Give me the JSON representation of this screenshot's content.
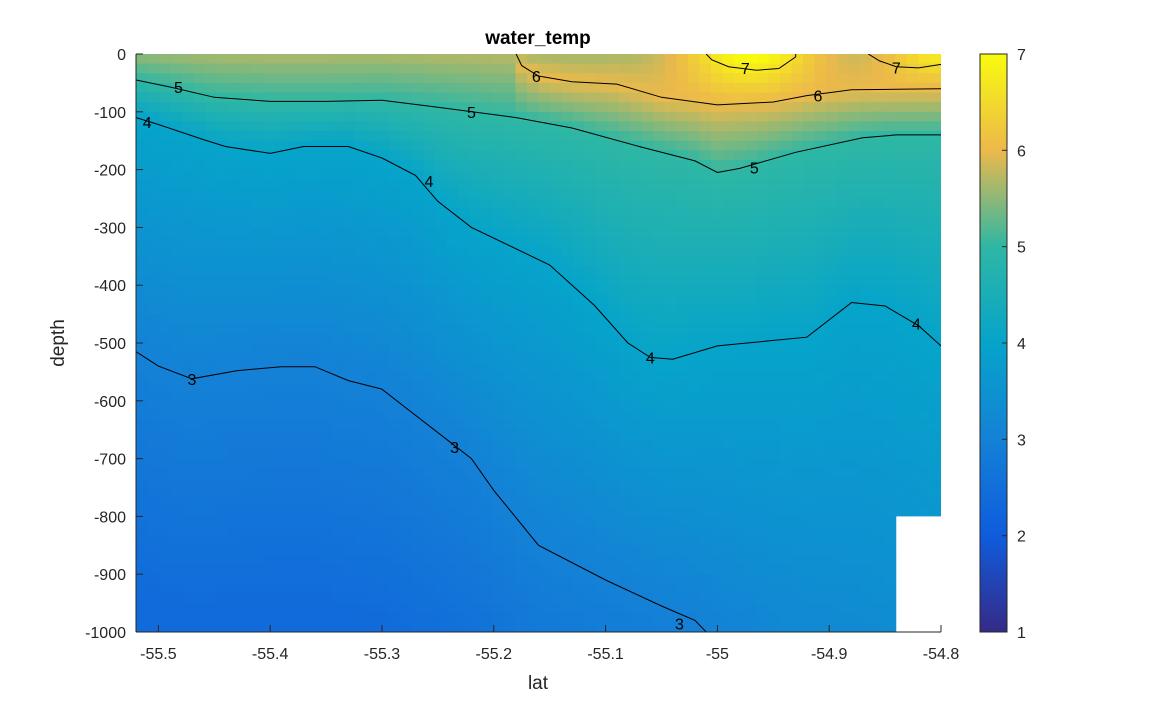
{
  "chart_data": {
    "type": "heatmap",
    "title": "water_temp",
    "xlabel": "lat",
    "ylabel": "depth",
    "xlim": [
      -55.52,
      -54.8
    ],
    "ylim": [
      -1000,
      0
    ],
    "x_ticks": [
      -55.5,
      -55.4,
      -55.3,
      -55.2,
      -55.1,
      -55,
      -54.9,
      -54.8
    ],
    "x_tick_labels": [
      "-55.5",
      "-55.4",
      "-55.3",
      "-55.2",
      "-55.1",
      "-55",
      "-54.9",
      "-54.8"
    ],
    "y_ticks": [
      0,
      -100,
      -200,
      -300,
      -400,
      -500,
      -600,
      -700,
      -800,
      -900,
      -1000
    ],
    "y_tick_labels": [
      "0",
      "-100",
      "-200",
      "-300",
      "-400",
      "-500",
      "-600",
      "-700",
      "-800",
      "-900",
      "-1000"
    ],
    "colorbar": {
      "limits": [
        1,
        7
      ],
      "ticks": [
        1,
        2,
        3,
        4,
        5,
        6,
        7
      ],
      "tick_labels": [
        "1",
        "2",
        "3",
        "4",
        "5",
        "6",
        "7"
      ],
      "colormap": "parula"
    },
    "grid": false,
    "missing_region": {
      "x_range": [
        -54.84,
        -54.8
      ],
      "y_range": [
        -1000,
        -800
      ]
    },
    "contours": [
      {
        "level": 3,
        "points": [
          [
            -55.52,
            -515
          ],
          [
            -55.5,
            -540
          ],
          [
            -55.47,
            -562
          ],
          [
            -55.43,
            -548
          ],
          [
            -55.39,
            -541
          ],
          [
            -55.36,
            -541
          ],
          [
            -55.33,
            -565
          ],
          [
            -55.3,
            -580
          ],
          [
            -55.28,
            -610
          ],
          [
            -55.24,
            -670
          ],
          [
            -55.22,
            -700
          ],
          [
            -55.2,
            -755
          ],
          [
            -55.16,
            -850
          ],
          [
            -55.1,
            -910
          ],
          [
            -55.05,
            -955
          ],
          [
            -55.02,
            -980
          ],
          [
            -55.01,
            -1000
          ]
        ],
        "labels": [
          {
            "x": -55.47,
            "y": -562,
            "text": "3"
          },
          {
            "x": -55.235,
            "y": -680,
            "text": "3"
          },
          {
            "x": -55.034,
            "y": -985,
            "text": "3"
          }
        ]
      },
      {
        "level": 4,
        "points": [
          [
            -55.52,
            -110
          ],
          [
            -55.5,
            -122
          ],
          [
            -55.46,
            -148
          ],
          [
            -55.44,
            -160
          ],
          [
            -55.4,
            -172
          ],
          [
            -55.37,
            -160
          ],
          [
            -55.33,
            -160
          ],
          [
            -55.3,
            -180
          ],
          [
            -55.27,
            -210
          ],
          [
            -55.25,
            -255
          ],
          [
            -55.22,
            -300
          ],
          [
            -55.15,
            -365
          ],
          [
            -55.11,
            -435
          ],
          [
            -55.08,
            -500
          ],
          [
            -55.06,
            -525
          ],
          [
            -55.04,
            -528
          ],
          [
            -55.0,
            -505
          ],
          [
            -54.92,
            -490
          ],
          [
            -54.88,
            -430
          ],
          [
            -54.85,
            -436
          ],
          [
            -54.82,
            -470
          ],
          [
            -54.8,
            -505
          ]
        ],
        "labels": [
          {
            "x": -55.51,
            "y": -118,
            "text": "4"
          },
          {
            "x": -55.258,
            "y": -220,
            "text": "4"
          },
          {
            "x": -55.06,
            "y": -525,
            "text": "4"
          },
          {
            "x": -54.822,
            "y": -466,
            "text": "4"
          }
        ]
      },
      {
        "level": 5,
        "points": [
          [
            -55.52,
            -45
          ],
          [
            -55.49,
            -57
          ],
          [
            -55.45,
            -75
          ],
          [
            -55.4,
            -82
          ],
          [
            -55.35,
            -82
          ],
          [
            -55.3,
            -80
          ],
          [
            -55.25,
            -92
          ],
          [
            -55.18,
            -110
          ],
          [
            -55.13,
            -128
          ],
          [
            -55.07,
            -160
          ],
          [
            -55.02,
            -185
          ],
          [
            -55.0,
            -205
          ],
          [
            -54.98,
            -198
          ],
          [
            -54.93,
            -170
          ],
          [
            -54.87,
            -145
          ],
          [
            -54.84,
            -140
          ],
          [
            -54.8,
            -140
          ]
        ],
        "labels": [
          {
            "x": -55.482,
            "y": -57,
            "text": "5"
          },
          {
            "x": -55.22,
            "y": -100,
            "text": "5"
          },
          {
            "x": -54.967,
            "y": -196,
            "text": "5"
          }
        ]
      },
      {
        "level": 6,
        "points": [
          [
            -55.18,
            0
          ],
          [
            -55.175,
            -20
          ],
          [
            -55.16,
            -38
          ],
          [
            -55.13,
            -48
          ],
          [
            -55.09,
            -52
          ],
          [
            -55.05,
            -75
          ],
          [
            -55.0,
            -88
          ],
          [
            -54.95,
            -83
          ],
          [
            -54.92,
            -72
          ],
          [
            -54.88,
            -62
          ],
          [
            -54.84,
            -61
          ],
          [
            -54.8,
            -60
          ]
        ],
        "labels": [
          {
            "x": -55.162,
            "y": -38,
            "text": "6"
          },
          {
            "x": -54.91,
            "y": -72,
            "text": "6"
          }
        ]
      },
      {
        "level": 7,
        "points": [
          [
            -55.01,
            0
          ],
          [
            -55.005,
            -10
          ],
          [
            -54.99,
            -22
          ],
          [
            -54.965,
            -28
          ],
          [
            -54.945,
            -25
          ],
          [
            -54.93,
            -5
          ],
          [
            -54.93,
            0
          ]
        ],
        "labels": [
          {
            "x": -54.975,
            "y": -24,
            "text": "7"
          }
        ]
      },
      {
        "level": 7,
        "points": [
          [
            -54.865,
            0
          ],
          [
            -54.855,
            -12
          ],
          [
            -54.84,
            -22
          ],
          [
            -54.82,
            -24
          ],
          [
            -54.8,
            -18
          ]
        ],
        "labels": [
          {
            "x": -54.84,
            "y": -23,
            "text": "7"
          }
        ]
      }
    ]
  }
}
